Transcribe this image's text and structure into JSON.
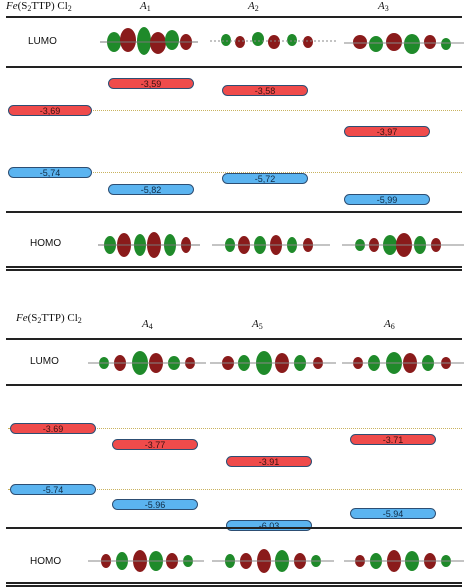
{
  "panel1": {
    "header": {
      "ref_prefix": "Fe",
      "ref_mid": "(S",
      "ref_sub": "2",
      "ref_suffix": "TTP) Cl",
      "ref_sub2": "2",
      "cols": [
        {
          "name": "A",
          "sub": "1"
        },
        {
          "name": "A",
          "sub": "2"
        },
        {
          "name": "A",
          "sub": "3"
        }
      ]
    },
    "lumo_label": "LUMO",
    "homo_label": "HOMO",
    "lumo_values": [
      "-3,69",
      "-3,59",
      "-3,58",
      "-3,97"
    ],
    "homo_values": [
      "-5,74",
      "-5,82",
      "-5,72",
      "-5,99"
    ]
  },
  "panel2": {
    "header": {
      "ref_prefix": "Fe",
      "ref_mid": "(S",
      "ref_sub": "2",
      "ref_suffix": "TTP) Cl",
      "ref_sub2": "2",
      "cols": [
        {
          "name": "A",
          "sub": "4"
        },
        {
          "name": "A",
          "sub": "5"
        },
        {
          "name": "A",
          "sub": "6"
        }
      ]
    },
    "lumo_label": "LUMO",
    "homo_label": "HOMO",
    "lumo_values": [
      "-3.69",
      "-3.77",
      "-3.91",
      "-3.71"
    ],
    "homo_values": [
      "-5.74",
      "-5.96",
      "-6.03",
      "-5.94"
    ]
  },
  "colors": {
    "lumo_bar": "#ef4b4b",
    "homo_bar": "#5bb4f0",
    "orbital_green": "#1f8a2a",
    "orbital_red": "#8a1b1b"
  }
}
